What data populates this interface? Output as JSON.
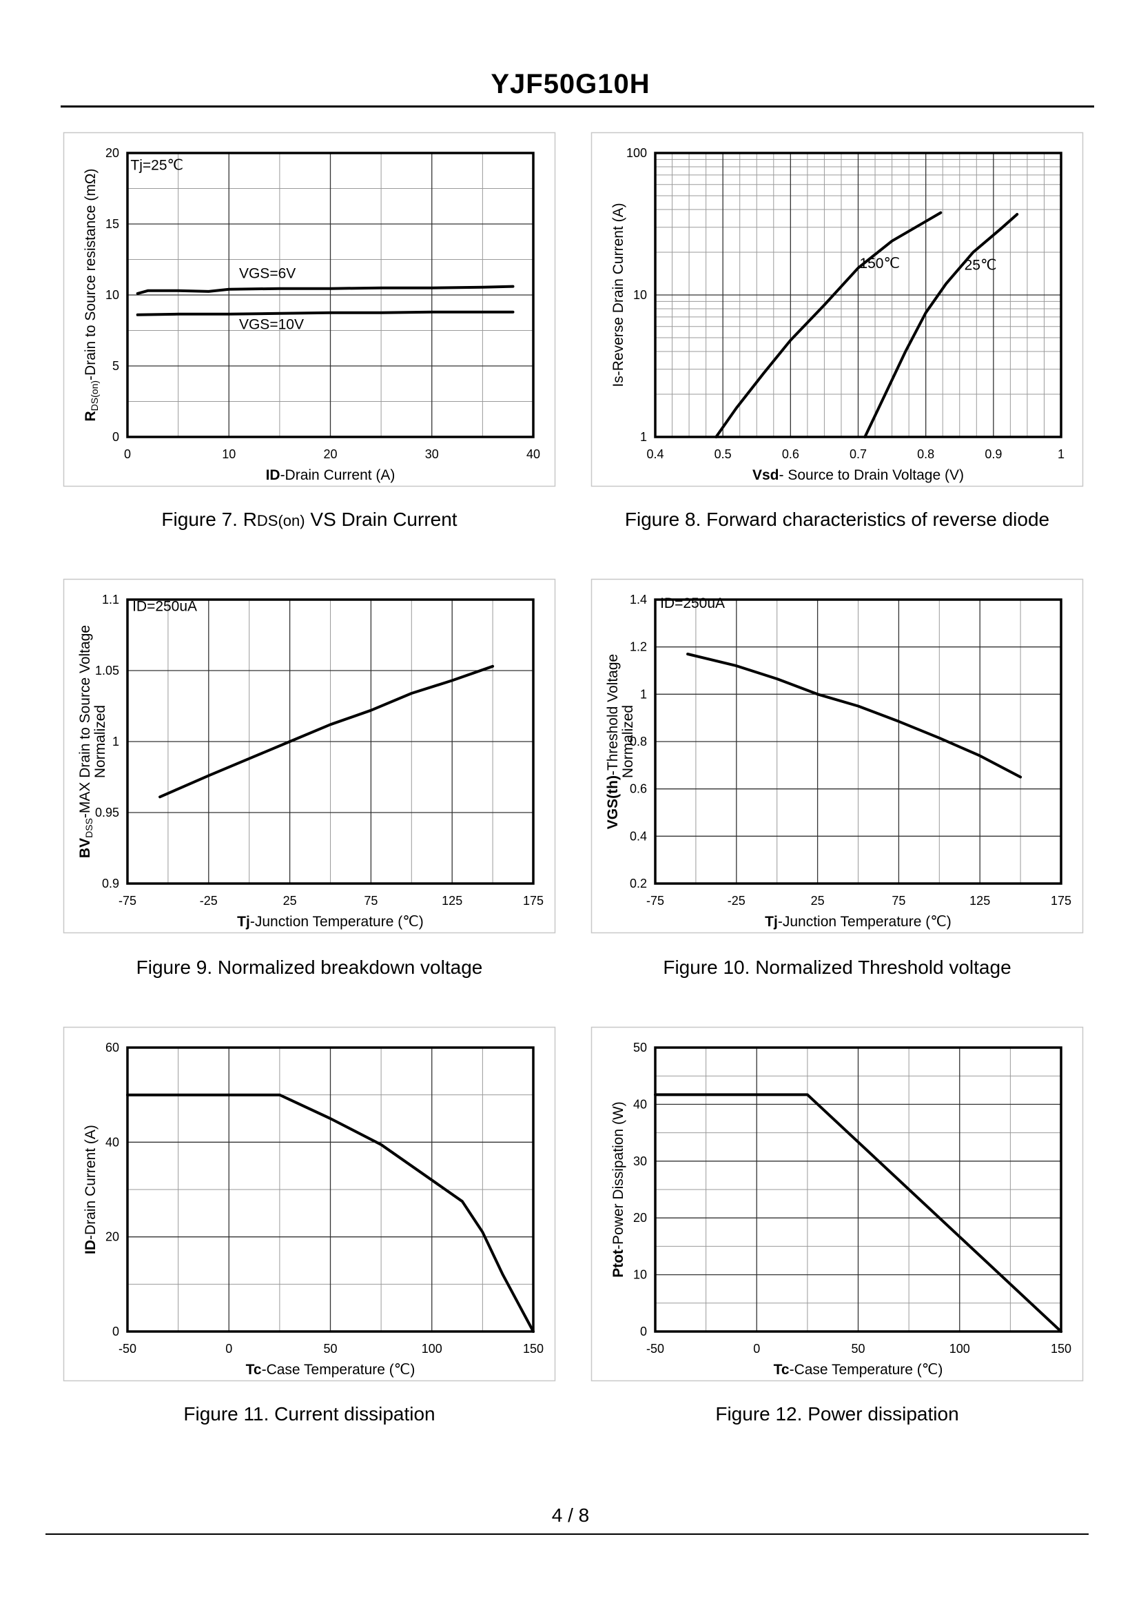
{
  "document": {
    "title": "YJF50G10H",
    "page_number": "4 / 8"
  },
  "chart_data": [
    {
      "type": "line",
      "id": "fig7",
      "caption": {
        "prefix": "Figure 7.  R",
        "sub": "DS(on)",
        "suffix": " VS Drain Current"
      },
      "xlabel": {
        "bold": "ID",
        "rest": "-Drain Current (A)"
      },
      "ylabel": {
        "bold": "R",
        "sub": "DS(on)",
        "rest": "-Drain to Source resistance (mΩ)"
      },
      "xlim": [
        0,
        40
      ],
      "ylim": [
        0,
        20
      ],
      "xticks": [
        0,
        10,
        20,
        30,
        40
      ],
      "yticks": [
        0,
        5,
        10,
        15,
        20
      ],
      "x_minor_gridlines": [
        5,
        15,
        25,
        35
      ],
      "y_minor_gridlines": [
        2.5,
        7.5,
        12.5,
        17.5
      ],
      "annotations": [
        {
          "text": "Tj=25℃",
          "x": 0.3,
          "y": 18.8
        },
        {
          "text": "VGS=6V",
          "x": 11,
          "y": 11.2
        },
        {
          "text": "VGS=10V",
          "x": 11,
          "y": 7.6
        }
      ],
      "series": [
        {
          "name": "VGS=6V",
          "points": [
            [
              1,
              10.1
            ],
            [
              2,
              10.3
            ],
            [
              5,
              10.3
            ],
            [
              8,
              10.25
            ],
            [
              10,
              10.4
            ],
            [
              15,
              10.45
            ],
            [
              20,
              10.45
            ],
            [
              25,
              10.5
            ],
            [
              30,
              10.5
            ],
            [
              35,
              10.55
            ],
            [
              38,
              10.6
            ]
          ]
        },
        {
          "name": "VGS=10V",
          "points": [
            [
              1,
              8.6
            ],
            [
              5,
              8.65
            ],
            [
              10,
              8.65
            ],
            [
              15,
              8.7
            ],
            [
              20,
              8.75
            ],
            [
              25,
              8.75
            ],
            [
              30,
              8.8
            ],
            [
              35,
              8.8
            ],
            [
              38,
              8.8
            ]
          ]
        }
      ]
    },
    {
      "type": "line",
      "id": "fig8",
      "caption": {
        "prefix": "Figure 8.  Forward characteristics of reverse diode",
        "sub": "",
        "suffix": ""
      },
      "xlabel": {
        "bold": "Vsd",
        "rest": "- Source to Drain Voltage (V)"
      },
      "ylabel": {
        "bold": "",
        "sub": "",
        "rest": "Is-Reverse  Drain Current (A)"
      },
      "xlim": [
        0.4,
        1.0
      ],
      "ylim": [
        1,
        100
      ],
      "yscale": "log",
      "xticks": [
        0.4,
        0.5,
        0.6,
        0.7,
        0.8,
        0.9,
        1
      ],
      "xticklabels": [
        "0.4",
        "0.5",
        "0.6",
        "0.7",
        "0.8",
        "0.9",
        "1"
      ],
      "yticks": [
        1,
        10,
        100
      ],
      "x_minor_gridlines": [
        0.425,
        0.45,
        0.475,
        0.525,
        0.55,
        0.575,
        0.625,
        0.65,
        0.675,
        0.725,
        0.75,
        0.775,
        0.825,
        0.85,
        0.875,
        0.925,
        0.95,
        0.975
      ],
      "y_minor_gridlines": [
        2,
        3,
        4,
        5,
        6,
        7,
        8,
        9,
        20,
        30,
        40,
        50,
        60,
        70,
        80,
        90
      ],
      "annotations": [
        {
          "text": "150℃",
          "x": 0.702,
          "y": 15.5
        },
        {
          "text": "25℃",
          "x": 0.857,
          "y": 15
        }
      ],
      "series": [
        {
          "name": "150℃",
          "points": [
            [
              0.49,
              1
            ],
            [
              0.52,
              1.6
            ],
            [
              0.56,
              2.8
            ],
            [
              0.6,
              4.8
            ],
            [
              0.65,
              8.5
            ],
            [
              0.7,
              15.5
            ],
            [
              0.75,
              24
            ],
            [
              0.8,
              33
            ],
            [
              0.822,
              38
            ]
          ]
        },
        {
          "name": "25℃",
          "points": [
            [
              0.71,
              1
            ],
            [
              0.74,
              2
            ],
            [
              0.77,
              4
            ],
            [
              0.8,
              7.5
            ],
            [
              0.83,
              12
            ],
            [
              0.87,
              20
            ],
            [
              0.91,
              29
            ],
            [
              0.935,
              37
            ]
          ]
        }
      ]
    },
    {
      "type": "line",
      "id": "fig9",
      "caption": {
        "prefix": "Figure 9.  Normalized breakdown voltage",
        "sub": "",
        "suffix": ""
      },
      "xlabel": {
        "bold": "Tj",
        "rest": "-Junction  Temperature (℃)"
      },
      "ylabel": {
        "bold": "BV",
        "sub": "DSS",
        "rest": "-MAX Drain to Source Voltage",
        "line2": "Normalized"
      },
      "xlim": [
        -75,
        175
      ],
      "ylim": [
        0.9,
        1.1
      ],
      "xticks": [
        -75,
        -25,
        25,
        75,
        125,
        175
      ],
      "yticks": [
        0.9,
        0.95,
        1,
        1.05,
        1.1
      ],
      "yticklabels": [
        "0.9",
        "0.95",
        "1",
        "1.05",
        "1.1"
      ],
      "x_minor_gridlines": [
        -50,
        0,
        50,
        100,
        150
      ],
      "y_minor_gridlines": [],
      "annotations": [
        {
          "text": "ID=250uA",
          "x": -72,
          "y": 1.092
        }
      ],
      "series": [
        {
          "name": "BVDSS",
          "points": [
            [
              -55,
              0.961
            ],
            [
              -25,
              0.976
            ],
            [
              0,
              0.988
            ],
            [
              25,
              1.0
            ],
            [
              50,
              1.012
            ],
            [
              75,
              1.022
            ],
            [
              100,
              1.034
            ],
            [
              125,
              1.043
            ],
            [
              150,
              1.053
            ]
          ]
        }
      ]
    },
    {
      "type": "line",
      "id": "fig10",
      "caption": {
        "prefix": "Figure 10.  Normalized Threshold voltage",
        "sub": "",
        "suffix": ""
      },
      "xlabel": {
        "bold": "Tj",
        "rest": "-Junction  Temperature (℃)"
      },
      "ylabel": {
        "bold": "VGS(th)",
        "sub": "",
        "rest": "-Threshold  Voltage",
        "line2": "Normalized"
      },
      "xlim": [
        -75,
        175
      ],
      "ylim": [
        0.2,
        1.4
      ],
      "xticks": [
        -75,
        -25,
        25,
        75,
        125,
        175
      ],
      "yticks": [
        0.2,
        0.4,
        0.6,
        0.8,
        1,
        1.2,
        1.4
      ],
      "yticklabels": [
        "0.2",
        "0.4",
        "0.6",
        "0.8",
        "1",
        "1.2",
        "1.4"
      ],
      "x_minor_gridlines": [
        -50,
        0,
        50,
        100,
        150
      ],
      "y_minor_gridlines": [],
      "annotations": [
        {
          "text": "ID=250uA",
          "x": -72,
          "y": 1.365
        }
      ],
      "series": [
        {
          "name": "VGS(th)",
          "points": [
            [
              -55,
              1.17
            ],
            [
              -25,
              1.12
            ],
            [
              0,
              1.065
            ],
            [
              25,
              1.0
            ],
            [
              50,
              0.95
            ],
            [
              75,
              0.885
            ],
            [
              100,
              0.815
            ],
            [
              125,
              0.74
            ],
            [
              150,
              0.65
            ]
          ]
        }
      ]
    },
    {
      "type": "line",
      "id": "fig11",
      "caption": {
        "prefix": "Figure 11.  Current dissipation",
        "sub": "",
        "suffix": ""
      },
      "xlabel": {
        "bold": "Tc",
        "rest": "-Case Temperature (℃)"
      },
      "ylabel": {
        "bold": "ID",
        "sub": "",
        "rest": "-Drain Current (A)"
      },
      "xlim": [
        -50,
        150
      ],
      "ylim": [
        0,
        60
      ],
      "xticks": [
        -50,
        0,
        50,
        100,
        150
      ],
      "yticks": [
        0,
        20,
        40,
        60
      ],
      "x_minor_gridlines": [
        -25,
        25,
        75,
        125
      ],
      "y_minor_gridlines": [
        10,
        30,
        50
      ],
      "annotations": [],
      "series": [
        {
          "name": "ID",
          "points": [
            [
              -50,
              50
            ],
            [
              25,
              50
            ],
            [
              50,
              45
            ],
            [
              75,
              39.5
            ],
            [
              100,
              32
            ],
            [
              115,
              27.5
            ],
            [
              125,
              21
            ],
            [
              135,
              12
            ],
            [
              150,
              0
            ]
          ]
        }
      ]
    },
    {
      "type": "line",
      "id": "fig12",
      "caption": {
        "prefix": "Figure 12.  Power dissipation",
        "sub": "",
        "suffix": ""
      },
      "xlabel": {
        "bold": "Tc",
        "rest": "-Case Temperature (℃)"
      },
      "ylabel": {
        "bold": "Ptot",
        "sub": "",
        "rest": "-Power Dissipation (W)"
      },
      "xlim": [
        -50,
        150
      ],
      "ylim": [
        0,
        50
      ],
      "xticks": [
        -50,
        0,
        50,
        100,
        150
      ],
      "yticks": [
        0,
        10,
        20,
        30,
        40,
        50
      ],
      "x_minor_gridlines": [
        -25,
        25,
        75,
        125
      ],
      "y_minor_gridlines": [
        5,
        15,
        25,
        35,
        45
      ],
      "annotations": [],
      "series": [
        {
          "name": "Ptot",
          "points": [
            [
              -50,
              41.7
            ],
            [
              25,
              41.7
            ],
            [
              150,
              0
            ]
          ]
        }
      ]
    }
  ]
}
